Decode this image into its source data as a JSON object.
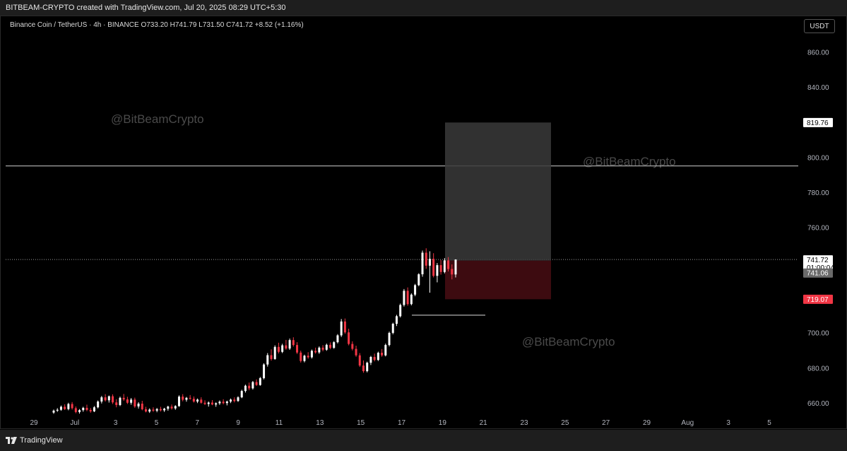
{
  "header": {
    "title": "BITBEAM-CRYPTO created with TradingView.com, Jul 20, 2025 08:29 UTC+5:30"
  },
  "info": {
    "symbol": "Binance Coin / TetherUS · 4h · BINANCE",
    "o_label": "O",
    "o_value": "733.20",
    "h_label": "H",
    "h_value": "741.79",
    "l_label": "L",
    "l_value": "731.50",
    "c_label": "C",
    "c_value": "741.72",
    "change": "+8.52 (+1.16%)"
  },
  "currency": "USDT",
  "watermarks": [
    "@BitBeamCrypto",
    "@BitBeamCrypto",
    "@BitBeamCrypto"
  ],
  "footer": {
    "brand": "TradingView"
  },
  "colors": {
    "up": "#ffffff",
    "down": "#f23645",
    "target_zone": "#3a3a3a",
    "stop_zone": "#3d0b10"
  },
  "chart_data": {
    "type": "candlestick",
    "y_ticks": [
      660,
      680,
      700,
      720,
      740,
      760,
      780,
      800,
      820,
      840,
      860
    ],
    "y_tick_labels": [
      "660.00",
      "680.00",
      "700.00",
      "",
      "",
      "760.00",
      "780.00",
      "800.00",
      "",
      "840.00",
      "860.00"
    ],
    "x_tick_labels": [
      "29",
      "Jul",
      "3",
      "5",
      "7",
      "9",
      "11",
      "13",
      "15",
      "17",
      "19",
      "21",
      "23",
      "25",
      "27",
      "29",
      "Aug",
      "3",
      "5"
    ],
    "price_labels": [
      {
        "price": 819.76,
        "text": "819.76",
        "style": "white"
      },
      {
        "price": 741.72,
        "text": "741.72",
        "style": "current"
      },
      {
        "price": 741.06,
        "text": "741.06",
        "style": "gray"
      },
      {
        "price": 719.07,
        "text": "719.07",
        "style": "red"
      }
    ],
    "countdown": "01:00:04",
    "horizontal_line": 795,
    "last_price": 741.72,
    "position_tool": {
      "entry": 741.06,
      "target": 819.76,
      "stop": 719.07
    },
    "support_line": 710,
    "candle_step_4h": true,
    "candles": [
      [
        654.5,
        656.2,
        653.8,
        655.6
      ],
      [
        655.6,
        657.0,
        654.9,
        656.1
      ],
      [
        656.1,
        658.5,
        655.5,
        657.8
      ],
      [
        657.8,
        659.2,
        656.0,
        656.5
      ],
      [
        656.5,
        660.1,
        655.8,
        659.4
      ],
      [
        659.4,
        660.5,
        656.2,
        657.0
      ],
      [
        657.0,
        658.0,
        654.1,
        654.8
      ],
      [
        654.8,
        656.5,
        653.9,
        655.9
      ],
      [
        655.9,
        657.8,
        655.0,
        657.2
      ],
      [
        657.2,
        659.0,
        655.3,
        656.0
      ],
      [
        656.0,
        657.1,
        654.4,
        655.2
      ],
      [
        655.2,
        658.2,
        654.8,
        657.5
      ],
      [
        657.5,
        661.4,
        656.9,
        660.8
      ],
      [
        660.8,
        664.0,
        659.7,
        663.2
      ],
      [
        663.2,
        665.0,
        660.8,
        661.5
      ],
      [
        661.5,
        664.2,
        660.2,
        663.8
      ],
      [
        663.8,
        664.9,
        659.4,
        660.3
      ],
      [
        660.3,
        662.1,
        657.5,
        658.8
      ],
      [
        658.8,
        663.6,
        658.2,
        662.9
      ],
      [
        662.9,
        665.1,
        661.2,
        662.0
      ],
      [
        662.0,
        663.5,
        659.4,
        660.1
      ],
      [
        660.1,
        662.8,
        659.0,
        661.9
      ],
      [
        661.9,
        663.0,
        657.2,
        658.0
      ],
      [
        658.0,
        660.4,
        656.8,
        659.6
      ],
      [
        659.6,
        661.2,
        655.8,
        656.4
      ],
      [
        656.4,
        657.8,
        654.6,
        655.1
      ],
      [
        655.1,
        656.9,
        654.3,
        656.2
      ],
      [
        656.2,
        657.5,
        654.9,
        655.6
      ],
      [
        655.6,
        657.1,
        654.7,
        656.5
      ],
      [
        656.5,
        657.8,
        655.1,
        655.8
      ],
      [
        655.8,
        657.2,
        654.9,
        656.7
      ],
      [
        656.7,
        658.4,
        655.6,
        657.9
      ],
      [
        657.9,
        659.1,
        656.2,
        656.9
      ],
      [
        656.9,
        658.7,
        656.1,
        658.2
      ],
      [
        658.2,
        664.3,
        657.8,
        663.6
      ],
      [
        663.6,
        665.0,
        660.9,
        661.8
      ],
      [
        661.8,
        663.4,
        660.7,
        662.9
      ],
      [
        662.9,
        664.5,
        661.8,
        662.4
      ],
      [
        662.4,
        663.7,
        660.2,
        660.8
      ],
      [
        660.8,
        662.5,
        659.9,
        661.9
      ],
      [
        661.9,
        663.2,
        659.6,
        660.1
      ],
      [
        660.1,
        661.5,
        658.8,
        659.4
      ],
      [
        659.4,
        660.8,
        657.9,
        660.2
      ],
      [
        660.2,
        661.6,
        658.7,
        659.1
      ],
      [
        659.1,
        660.3,
        657.8,
        659.8
      ],
      [
        659.8,
        661.4,
        658.9,
        660.7
      ],
      [
        660.7,
        662.1,
        659.2,
        659.9
      ],
      [
        659.9,
        661.3,
        658.6,
        660.8
      ],
      [
        660.8,
        662.5,
        659.9,
        661.9
      ],
      [
        661.9,
        663.2,
        660.3,
        661.1
      ],
      [
        661.1,
        663.8,
        660.6,
        663.2
      ],
      [
        663.2,
        667.5,
        662.7,
        666.8
      ],
      [
        666.8,
        670.4,
        665.9,
        669.8
      ],
      [
        669.8,
        671.6,
        667.2,
        668.3
      ],
      [
        668.3,
        672.5,
        667.6,
        671.9
      ],
      [
        671.9,
        673.4,
        669.7,
        670.2
      ],
      [
        670.2,
        674.8,
        669.8,
        674.1
      ],
      [
        674.1,
        682.6,
        673.4,
        681.9
      ],
      [
        681.9,
        688.4,
        680.7,
        687.2
      ],
      [
        687.2,
        690.5,
        684.1,
        685.0
      ],
      [
        685.0,
        692.8,
        684.6,
        691.9
      ],
      [
        691.9,
        694.3,
        688.2,
        689.1
      ],
      [
        689.1,
        693.7,
        688.4,
        692.8
      ],
      [
        692.8,
        695.9,
        690.3,
        691.0
      ],
      [
        691.0,
        696.7,
        690.2,
        695.8
      ],
      [
        695.8,
        697.4,
        692.1,
        693.0
      ],
      [
        693.0,
        694.6,
        687.9,
        688.7
      ],
      [
        688.7,
        689.8,
        683.0,
        683.9
      ],
      [
        683.9,
        687.5,
        683.1,
        686.9
      ],
      [
        686.9,
        688.9,
        685.2,
        686.0
      ],
      [
        686.0,
        690.4,
        685.3,
        689.7
      ],
      [
        689.7,
        691.5,
        688.1,
        688.8
      ],
      [
        688.8,
        692.2,
        688.0,
        691.5
      ],
      [
        691.5,
        692.9,
        689.4,
        690.3
      ],
      [
        690.3,
        693.8,
        689.7,
        693.1
      ],
      [
        693.1,
        694.5,
        690.6,
        691.4
      ],
      [
        691.4,
        695.2,
        690.8,
        694.6
      ],
      [
        694.6,
        699.2,
        693.9,
        698.5
      ],
      [
        698.5,
        707.8,
        697.6,
        706.4
      ],
      [
        706.4,
        708.1,
        699.4,
        700.2
      ],
      [
        700.2,
        702.3,
        692.8,
        693.6
      ],
      [
        693.6,
        695.1,
        689.9,
        690.8
      ],
      [
        690.8,
        692.6,
        686.3,
        687.1
      ],
      [
        687.1,
        688.4,
        680.5,
        681.3
      ],
      [
        681.3,
        684.2,
        677.2,
        678.1
      ],
      [
        678.1,
        683.5,
        677.4,
        682.9
      ],
      [
        682.9,
        686.8,
        681.6,
        686.2
      ],
      [
        686.2,
        688.1,
        683.7,
        684.5
      ],
      [
        684.5,
        689.2,
        683.9,
        688.6
      ],
      [
        688.6,
        690.7,
        686.3,
        687.1
      ],
      [
        687.1,
        693.8,
        686.5,
        693.0
      ],
      [
        693.0,
        700.6,
        692.2,
        699.9
      ],
      [
        699.9,
        705.7,
        699.1,
        705.1
      ],
      [
        705.1,
        710.2,
        703.8,
        709.4
      ],
      [
        709.4,
        716.6,
        708.7,
        715.8
      ],
      [
        715.8,
        724.9,
        714.9,
        723.9
      ],
      [
        723.9,
        725.8,
        715.4,
        716.3
      ],
      [
        716.3,
        722.4,
        715.6,
        721.7
      ],
      [
        721.7,
        727.8,
        720.8,
        727.1
      ],
      [
        727.1,
        733.9,
        726.5,
        733.3
      ],
      [
        733.3,
        746.8,
        731.9,
        745.6
      ],
      [
        745.6,
        748.1,
        736.4,
        738.2
      ],
      [
        738.2,
        746.4,
        722.8,
        742.1
      ],
      [
        742.1,
        745.3,
        731.5,
        732.4
      ],
      [
        732.4,
        739.7,
        728.7,
        738.5
      ],
      [
        738.5,
        741.4,
        733.1,
        734.6
      ],
      [
        734.6,
        742.5,
        733.8,
        741.2
      ],
      [
        741.2,
        743.1,
        734.9,
        736.3
      ],
      [
        736.3,
        738.9,
        730.4,
        733.2
      ],
      [
        733.2,
        741.8,
        731.5,
        741.7
      ]
    ]
  }
}
